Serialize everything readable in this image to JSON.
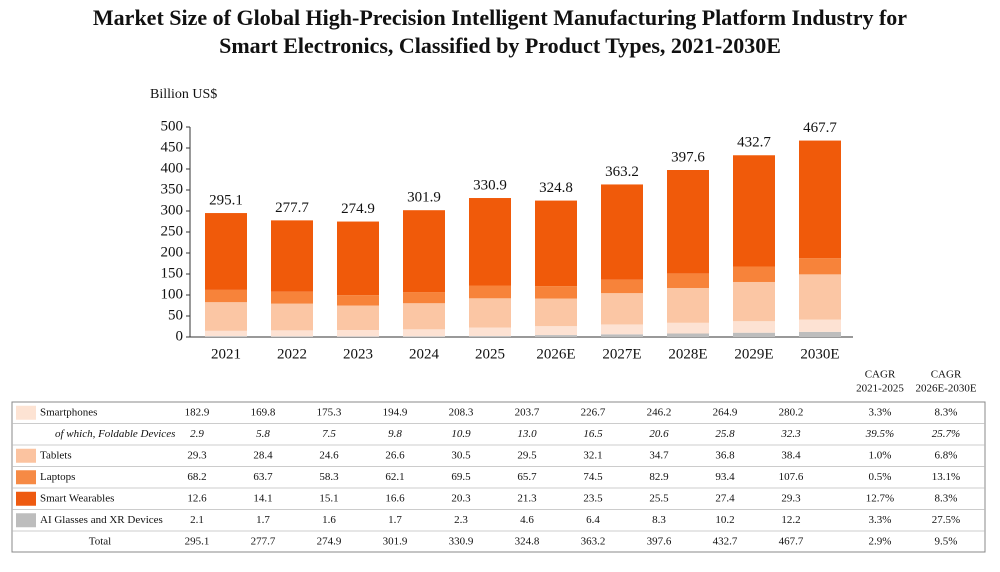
{
  "chart_data": {
    "type": "bar",
    "stacked": true,
    "title": [
      "Market Size of Global High-Precision Intelligent Manufacturing Platform Industry for",
      "Smart Electronics, Classified by Product Types, 2021-2030E"
    ],
    "y_label": "Billion US$",
    "categories": [
      "2021",
      "2022",
      "2023",
      "2024",
      "2025",
      "2026E",
      "2027E",
      "2028E",
      "2029E",
      "2030E"
    ],
    "ylim": [
      0,
      500
    ],
    "yticks": [
      0,
      50,
      100,
      150,
      200,
      250,
      300,
      350,
      400,
      450,
      500
    ],
    "stack_order": [
      5,
      4,
      3,
      2,
      0
    ],
    "cagr_headers": [
      [
        "CAGR",
        "2021-2025"
      ],
      [
        "CAGR",
        "2026E-2030E"
      ]
    ],
    "series": [
      {
        "name": "Smartphones",
        "color": "#f05a0a",
        "legend_color": "#fde3d3",
        "values": [
          182.9,
          169.8,
          175.3,
          194.9,
          208.3,
          203.7,
          226.7,
          246.2,
          264.9,
          280.2
        ],
        "cagr": [
          "3.3%",
          "8.3%"
        ]
      },
      {
        "name": "of which, Foldable Devices",
        "sub": true,
        "values": [
          2.9,
          5.8,
          7.5,
          9.8,
          10.9,
          13.0,
          16.5,
          20.6,
          25.8,
          32.3
        ],
        "value_labels": [
          "2.9",
          "5.8",
          "7.5",
          "9.8",
          "10.9",
          "13.0",
          "16.5",
          "20.6",
          "25.8",
          "32.3"
        ],
        "cagr": [
          "39.5%",
          "25.7%"
        ]
      },
      {
        "name": "Tablets",
        "color": "#f7833a",
        "legend_color": "#fbc3a0",
        "values": [
          29.3,
          28.4,
          24.6,
          26.6,
          30.5,
          29.5,
          32.1,
          34.7,
          36.8,
          38.4
        ],
        "cagr": [
          "1.0%",
          "6.8%"
        ]
      },
      {
        "name": "Laptops",
        "color": "#fbc6a4",
        "legend_color": "#f68a45",
        "values": [
          68.2,
          63.7,
          58.3,
          62.1,
          69.5,
          65.7,
          74.5,
          82.9,
          93.4,
          107.6
        ],
        "cagr": [
          "0.5%",
          "13.1%"
        ]
      },
      {
        "name": "Smart Wearables",
        "color": "#fde2d3",
        "legend_color": "#ee5a10",
        "values": [
          12.6,
          14.1,
          15.1,
          16.6,
          20.3,
          21.3,
          23.5,
          25.5,
          27.4,
          29.3
        ],
        "cagr": [
          "12.7%",
          "8.3%"
        ]
      },
      {
        "name": "AI Glasses and XR Devices",
        "color": "#bdbdbd",
        "legend_color": "#bdbdbd",
        "values": [
          2.1,
          1.7,
          1.6,
          1.7,
          2.3,
          4.6,
          6.4,
          8.3,
          10.2,
          12.2
        ],
        "cagr": [
          "3.3%",
          "27.5%"
        ]
      }
    ],
    "total": {
      "name": "Total",
      "values": [
        295.1,
        277.7,
        274.9,
        301.9,
        330.9,
        324.8,
        363.2,
        397.6,
        432.7,
        467.7
      ],
      "cagr": [
        "2.9%",
        "9.5%"
      ]
    }
  }
}
